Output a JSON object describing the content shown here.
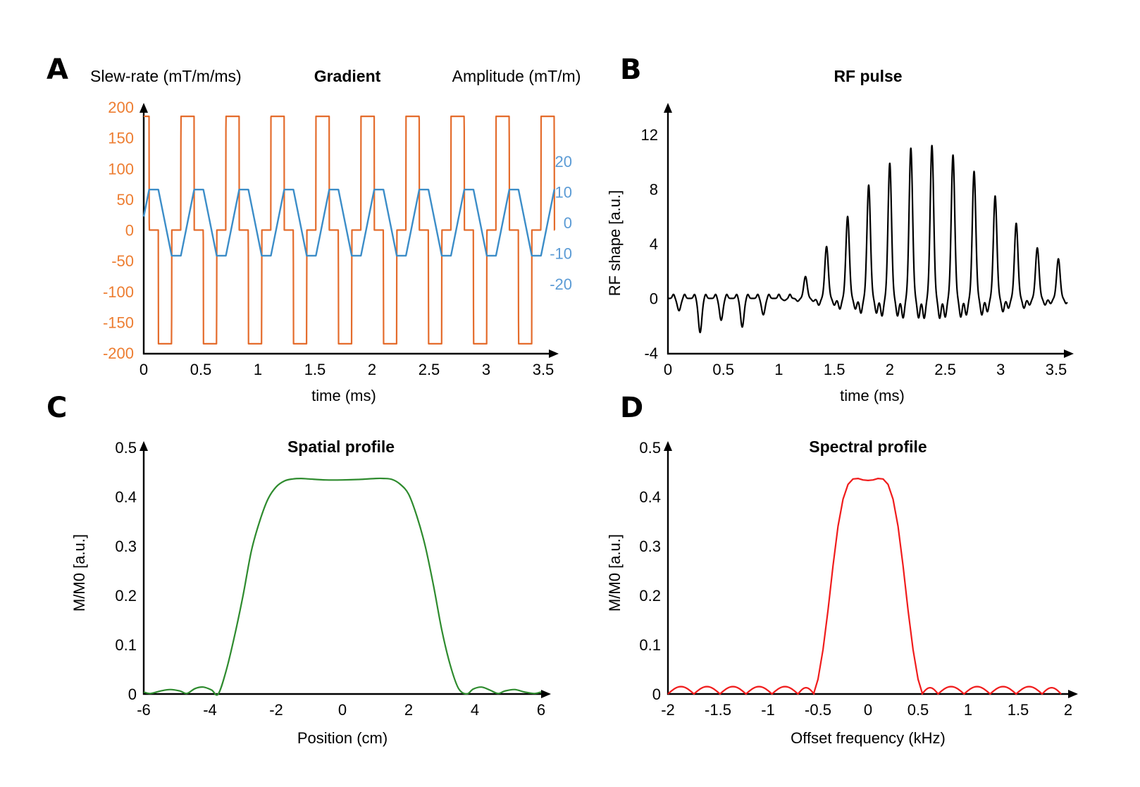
{
  "chart_data": [
    {
      "panel": "A",
      "type": "line",
      "title": "Gradient",
      "left_axis_label": "Slew-rate (mT/m/ms)",
      "right_axis_label": "Amplitude (mT/m)",
      "xlabel": "time (ms)",
      "xlim": [
        0,
        3.6
      ],
      "xticks": [
        0,
        0.5,
        1,
        1.5,
        2,
        2.5,
        3,
        3.5
      ],
      "xtick_labels": [
        "0",
        "0.5",
        "1",
        "1.5",
        "2",
        "2.5",
        "3",
        "3.5"
      ],
      "ylim_left": [
        -200,
        200
      ],
      "yticks_left": [
        200,
        150,
        100,
        50,
        0,
        -50,
        -100,
        -150,
        -200
      ],
      "yticks_left_labels": [
        "200",
        "150",
        "100",
        "50",
        "0",
        "-50",
        "-100",
        "-150",
        "-200"
      ],
      "ylim_right": [
        -47,
        47
      ],
      "yticks_right": [
        20,
        10,
        0,
        -10,
        -20
      ],
      "yticks_right_labels": [
        "20",
        "10",
        "0",
        "-10",
        "-20"
      ],
      "colors": {
        "slew": "#E46C2C",
        "amplitude": "#3C8DC8",
        "left_axis_text": "#ED7D31",
        "right_axis_text": "#5B9BD5"
      },
      "series": [
        {
          "name": "Slew-rate",
          "axis": "left",
          "description": "bipolar trapezoid slew waveform",
          "period_ms": 0.3944,
          "plateau_value": 185,
          "ramp_time_ms": 0.072,
          "plateau_time_ms": 0.0254
        },
        {
          "name": "Amplitude",
          "axis": "right",
          "description": "bipolar trapezoidal gradient",
          "period_ms": 0.3944,
          "peak_value": 10.8,
          "start_value": 2
        }
      ]
    },
    {
      "panel": "B",
      "type": "line",
      "title": "RF pulse",
      "xlabel": "time (ms)",
      "ylabel": "RF shape [a.u.]",
      "xlim": [
        0,
        3.6
      ],
      "xticks": [
        0,
        0.5,
        1,
        1.5,
        2,
        2.5,
        3,
        3.5
      ],
      "xtick_labels": [
        "0",
        "0.5",
        "1",
        "1.5",
        "2",
        "2.5",
        "3",
        "3.5"
      ],
      "ylim": [
        -4,
        14
      ],
      "yticks": [
        12,
        8,
        4,
        0,
        -4
      ],
      "ytick_labels": [
        "12",
        "8",
        "4",
        "0",
        "-4"
      ],
      "color": "#000000",
      "subpulse_times_ms": [
        0.1,
        0.29,
        0.48,
        0.67,
        0.86,
        1.05,
        1.24,
        1.43,
        1.62,
        1.81,
        2.0,
        2.19,
        2.38,
        2.57,
        2.76,
        2.95,
        3.14,
        3.33,
        3.52
      ],
      "subpulse_peaks": [
        -0.9,
        -2.5,
        -1.6,
        -2.1,
        -1.2,
        -0.15,
        1.6,
        3.8,
        6.0,
        8.3,
        9.9,
        11.0,
        11.2,
        10.5,
        9.3,
        7.5,
        5.5,
        3.7,
        2.9
      ]
    },
    {
      "panel": "C",
      "type": "line",
      "title": "Spatial profile",
      "xlabel": "Position (cm)",
      "ylabel": "M/M0 [a.u.]",
      "xlim": [
        -6,
        6
      ],
      "xticks": [
        -6,
        -4,
        -2,
        0,
        2,
        4,
        6
      ],
      "xtick_labels": [
        "-6",
        "-4",
        "-2",
        "0",
        "2",
        "4",
        "6"
      ],
      "ylim": [
        0,
        0.5
      ],
      "yticks": [
        0.5,
        0.4,
        0.3,
        0.2,
        0.1,
        0
      ],
      "ytick_labels": [
        "0.5",
        "0.4",
        "0.3",
        "0.2",
        "0.1",
        "0"
      ],
      "color": "#2E8B2E",
      "x": [
        -6,
        -5.8,
        -5.5,
        -5.2,
        -4.9,
        -4.7,
        -4.45,
        -4.2,
        -3.95,
        -3.75,
        -3.5,
        -3.25,
        -3.0,
        -2.75,
        -2.5,
        -2.25,
        -2.0,
        -1.75,
        -1.5,
        -1.25,
        -1.0,
        -0.5,
        0,
        0.5,
        1.0,
        1.25,
        1.5,
        1.75,
        2.0,
        2.25,
        2.5,
        2.75,
        3.0,
        3.25,
        3.5,
        3.75,
        3.95,
        4.2,
        4.45,
        4.7,
        4.9,
        5.2,
        5.5,
        5.8,
        6
      ],
      "y": [
        0.004,
        0.001,
        0.006,
        0.009,
        0.006,
        0.001,
        0.011,
        0.014,
        0.008,
        0.0,
        0.05,
        0.12,
        0.2,
        0.29,
        0.35,
        0.395,
        0.42,
        0.432,
        0.436,
        0.437,
        0.436,
        0.434,
        0.434,
        0.435,
        0.437,
        0.437,
        0.435,
        0.425,
        0.405,
        0.36,
        0.3,
        0.22,
        0.13,
        0.06,
        0.012,
        0.0,
        0.01,
        0.014,
        0.008,
        0.001,
        0.006,
        0.009,
        0.004,
        0.001,
        0.004
      ]
    },
    {
      "panel": "D",
      "type": "line",
      "title": "Spectral profile",
      "xlabel": "Offset frequency (kHz)",
      "ylabel": "M/M0 [a.u.]",
      "xlim": [
        -2,
        2
      ],
      "xticks": [
        -2,
        -1.5,
        -1,
        -0.5,
        0,
        0.5,
        1,
        1.5,
        2
      ],
      "xtick_labels": [
        "-2",
        "-1.5",
        "-1",
        "-0.5",
        "0",
        "0.5",
        "1",
        "1.5",
        "2"
      ],
      "ylim": [
        0,
        0.5
      ],
      "yticks": [
        0.5,
        0.4,
        0.3,
        0.2,
        0.1,
        0
      ],
      "ytick_labels": [
        "0.5",
        "0.4",
        "0.3",
        "0.2",
        "0.1",
        "0"
      ],
      "color": "#F01C1C",
      "sidelobe_nulls_khz": [
        -1.74,
        -1.48,
        -1.22,
        -0.96,
        -0.7,
        -0.54,
        0.54,
        0.7,
        0.96,
        1.22,
        1.48,
        1.74
      ],
      "sidelobe_peak": 0.015,
      "x": [
        -0.54,
        -0.5,
        -0.45,
        -0.4,
        -0.35,
        -0.3,
        -0.25,
        -0.2,
        -0.15,
        -0.1,
        -0.05,
        0,
        0.05,
        0.1,
        0.15,
        0.2,
        0.25,
        0.3,
        0.35,
        0.4,
        0.45,
        0.5,
        0.54
      ],
      "y": [
        0.003,
        0.03,
        0.09,
        0.17,
        0.26,
        0.34,
        0.395,
        0.425,
        0.436,
        0.437,
        0.434,
        0.433,
        0.434,
        0.437,
        0.436,
        0.425,
        0.395,
        0.34,
        0.26,
        0.17,
        0.09,
        0.03,
        0.003
      ]
    }
  ],
  "panels": {
    "A": {
      "letter": "A"
    },
    "B": {
      "letter": "B"
    },
    "C": {
      "letter": "C"
    },
    "D": {
      "letter": "D"
    }
  }
}
